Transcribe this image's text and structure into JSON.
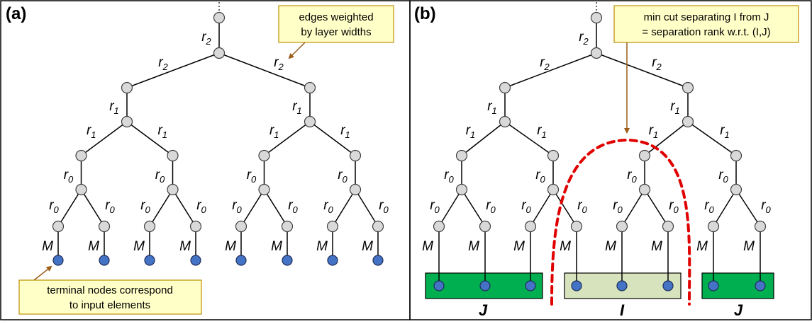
{
  "panels": {
    "a": {
      "label": "(a)",
      "callout_weights": [
        "edges weighted",
        "by layer widths"
      ],
      "callout_terminals": [
        "terminal nodes correspond",
        "to input elements"
      ]
    },
    "b": {
      "label": "(b)",
      "callout_mincut": [
        "min cut separating I from J",
        "= separation rank w.r.t. (I,J)"
      ],
      "groups": [
        "J",
        "I",
        "J"
      ]
    }
  },
  "edge_labels": {
    "leaf": "M",
    "r0": {
      "base": "r",
      "sub": "0"
    },
    "r1": {
      "base": "r",
      "sub": "1"
    },
    "r2": {
      "base": "r",
      "sub": "2"
    }
  },
  "colors": {
    "inner_node": "#d9d9d9",
    "leaf_node": "#4472c4",
    "callout_fill": "#ffffc8",
    "callout_border": "#bf9000",
    "arrow": "#9c5b17",
    "group_J_fill": "#00b050",
    "group_I_fill": "#d6e3bc",
    "cut_line": "#e00000"
  }
}
